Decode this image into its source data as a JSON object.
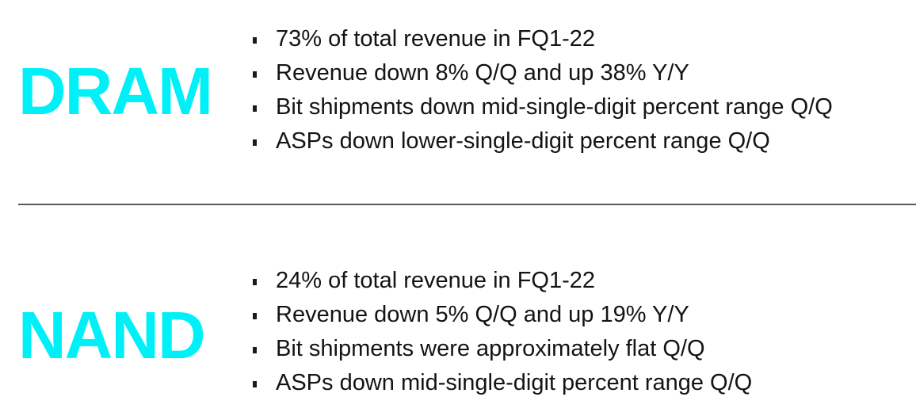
{
  "colors": {
    "heading": "#00f0f8",
    "text": "#141414",
    "bullet": "#1a1a1a",
    "divider": "#5a5a5a"
  },
  "sections": [
    {
      "heading": "DRAM",
      "bullets": [
        "73% of total revenue in FQ1-22",
        "Revenue down 8% Q/Q and up 38% Y/Y",
        "Bit shipments down mid-single-digit percent range Q/Q",
        "ASPs down lower-single-digit percent range Q/Q"
      ]
    },
    {
      "heading": "NAND",
      "bullets": [
        "24% of total revenue in FQ1-22",
        "Revenue down 5% Q/Q and up 19% Y/Y",
        "Bit shipments were approximately flat Q/Q",
        "ASPs down mid-single-digit percent range Q/Q"
      ]
    }
  ]
}
